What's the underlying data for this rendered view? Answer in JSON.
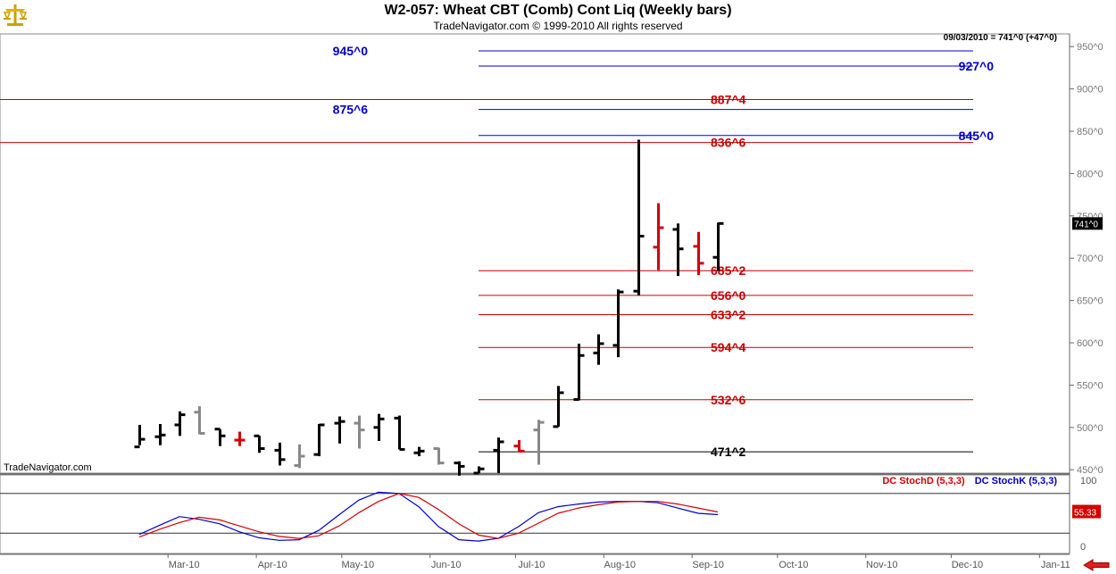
{
  "header": {
    "title": "W2-057:  Wheat CBT (Comb) Cont Liq  (Weekly bars)",
    "subtitle": "TradeNavigator.com © 1999-2010 All rights reserved",
    "stamp": "09/03/2010 = 741^0 (+47^0)",
    "watermark": "TradeNavigator.com"
  },
  "indicator": {
    "stochd_label": "DC StochD (5,3,3)",
    "stochk_label": "DC StochK (5,3,3)",
    "last_value": "55.33",
    "ticks": [
      "100",
      "0"
    ],
    "levels": [
      80,
      20
    ],
    "d_color": "#d40000",
    "k_color": "#0000c8"
  },
  "chart_data": {
    "type": "ohlc",
    "y_ticks": [
      "950^0",
      "900^0",
      "850^0",
      "800^0",
      "750^0",
      "700^0",
      "650^0",
      "600^0",
      "550^0",
      "500^0",
      "450^0"
    ],
    "y_values": [
      950,
      900,
      850,
      800,
      750,
      700,
      650,
      600,
      550,
      500,
      450
    ],
    "ylim": [
      446,
      965
    ],
    "last_price_label": "741^0",
    "x_ticks": [
      "Mar-10",
      "Apr-10",
      "May-10",
      "Jun-10",
      "Jul-10",
      "Aug-10",
      "Sep-10",
      "Oct-10",
      "Nov-10",
      "Dec-10",
      "Jan-11"
    ],
    "bars": [
      {
        "date": "2010-02-19",
        "o": 477,
        "h": 503,
        "l": 479,
        "c": 486,
        "color": "#000000"
      },
      {
        "date": "2010-02-26",
        "o": 489,
        "h": 504,
        "l": 479,
        "c": 491,
        "color": "#000000"
      },
      {
        "date": "2010-03-05",
        "o": 503,
        "h": 519,
        "l": 490,
        "c": 515,
        "color": "#000000"
      },
      {
        "date": "2010-03-12",
        "o": 518,
        "h": 525,
        "l": 492,
        "c": 493,
        "color": "#888888"
      },
      {
        "date": "2010-03-19",
        "o": 498,
        "h": 498,
        "l": 478,
        "c": 490,
        "color": "#000000"
      },
      {
        "date": "2010-03-26",
        "o": 485,
        "h": 495,
        "l": 478,
        "c": 485,
        "color": "#d40000"
      },
      {
        "date": "2010-04-02",
        "o": 490,
        "h": 490,
        "l": 470,
        "c": 475,
        "color": "#000000"
      },
      {
        "date": "2010-04-09",
        "o": 473,
        "h": 482,
        "l": 455,
        "c": 462,
        "color": "#000000"
      },
      {
        "date": "2010-04-16",
        "o": 455,
        "h": 480,
        "l": 452,
        "c": 466,
        "color": "#888888"
      },
      {
        "date": "2010-04-23",
        "o": 468,
        "h": 504,
        "l": 466,
        "c": 503,
        "color": "#000000"
      },
      {
        "date": "2010-04-30",
        "o": 505,
        "h": 513,
        "l": 481,
        "c": 507,
        "color": "#000000"
      },
      {
        "date": "2010-05-07",
        "o": 505,
        "h": 514,
        "l": 475,
        "c": 497,
        "color": "#888888"
      },
      {
        "date": "2010-05-14",
        "o": 500,
        "h": 516,
        "l": 484,
        "c": 510,
        "color": "#000000"
      },
      {
        "date": "2010-05-21",
        "o": 511,
        "h": 514,
        "l": 474,
        "c": 474,
        "color": "#000000"
      },
      {
        "date": "2010-05-28",
        "o": 470,
        "h": 477,
        "l": 466,
        "c": 472,
        "color": "#000000"
      },
      {
        "date": "2010-06-04",
        "o": 475,
        "h": 476,
        "l": 456,
        "c": 458,
        "color": "#888888"
      },
      {
        "date": "2010-06-11",
        "o": 458,
        "h": 460,
        "l": 443,
        "c": 454,
        "color": "#000000"
      },
      {
        "date": "2010-06-18",
        "o": 446,
        "h": 454,
        "l": 446,
        "c": 451,
        "color": "#000000"
      },
      {
        "date": "2010-06-25",
        "o": 473,
        "h": 488,
        "l": 446,
        "c": 483,
        "color": "#000000"
      },
      {
        "date": "2010-07-02",
        "o": 478,
        "h": 485,
        "l": 471,
        "c": 472,
        "color": "#d40000"
      },
      {
        "date": "2010-07-09",
        "o": 497,
        "h": 509,
        "l": 456,
        "c": 506,
        "color": "#888888"
      },
      {
        "date": "2010-07-16",
        "o": 501,
        "h": 549,
        "l": 501,
        "c": 541,
        "color": "#000000"
      },
      {
        "date": "2010-07-23",
        "o": 533,
        "h": 599,
        "l": 532,
        "c": 585,
        "color": "#000000"
      },
      {
        "date": "2010-07-30",
        "o": 588,
        "h": 610,
        "l": 574,
        "c": 599,
        "color": "#000000"
      },
      {
        "date": "2010-08-06",
        "o": 597,
        "h": 663,
        "l": 583,
        "c": 660,
        "color": "#000000"
      },
      {
        "date": "2010-08-13",
        "o": 661,
        "h": 840,
        "l": 656,
        "c": 726,
        "color": "#000000"
      },
      {
        "date": "2010-08-20",
        "o": 713,
        "h": 765,
        "l": 686,
        "c": 736,
        "color": "#d40000"
      },
      {
        "date": "2010-08-27",
        "o": 734,
        "h": 741,
        "l": 679,
        "c": 711,
        "color": "#000000"
      },
      {
        "date": "2010-09-03",
        "o": 714,
        "h": 731,
        "l": 680,
        "c": 694,
        "color": "#d40000"
      },
      {
        "date": "2010-09-10",
        "o": 701,
        "h": 742,
        "l": 685,
        "c": 741,
        "color": "#000000"
      }
    ],
    "levels": [
      {
        "label": "945^0",
        "value": 945,
        "color": "#0000c8",
        "side": "left",
        "start": "2010-06-18"
      },
      {
        "label": "927^0",
        "value": 927,
        "color": "#0000c8",
        "side": "right",
        "start": "2010-06-18"
      },
      {
        "label": "887^4",
        "value": 887.5,
        "color": "#c80000",
        "side": "mid",
        "start": "2010-01-01"
      },
      {
        "label": "875^6",
        "value": 875.75,
        "color": "#0000c8",
        "side": "left",
        "start": "2010-06-18"
      },
      {
        "label": "845^0",
        "value": 845,
        "color": "#0000c8",
        "side": "right",
        "start": "2010-06-18"
      },
      {
        "label": "836^6",
        "value": 836.75,
        "color": "#c80000",
        "side": "mid",
        "start": "2010-01-01"
      },
      {
        "label": "685^2",
        "value": 685.25,
        "color": "#c80000",
        "side": "mid",
        "start": "2010-06-18"
      },
      {
        "label": "656^0",
        "value": 656,
        "color": "#c80000",
        "side": "mid",
        "start": "2010-06-18"
      },
      {
        "label": "633^2",
        "value": 633.25,
        "color": "#c80000",
        "side": "mid",
        "start": "2010-06-18"
      },
      {
        "label": "594^4",
        "value": 594.5,
        "color": "#c80000",
        "side": "mid",
        "start": "2010-06-18"
      },
      {
        "label": "532^6",
        "value": 532.75,
        "color": "#c80000",
        "side": "mid",
        "start": "2010-06-18"
      },
      {
        "label": "471^2",
        "value": 471.25,
        "color": "#000000",
        "side": "mid",
        "start": "2010-06-18"
      }
    ],
    "stoch_k": [
      18,
      32,
      45,
      41,
      34,
      22,
      13,
      9,
      10,
      24,
      48,
      70,
      82,
      80,
      60,
      30,
      10,
      8,
      12,
      30,
      51,
      60,
      64,
      67,
      68,
      68,
      66,
      58,
      50,
      48
    ],
    "stoch_d": [
      14,
      26,
      36,
      44,
      40,
      31,
      22,
      15,
      12,
      16,
      31,
      51,
      68,
      80,
      74,
      56,
      34,
      17,
      12,
      20,
      35,
      50,
      58,
      63,
      67,
      68,
      68,
      64,
      58,
      52
    ]
  }
}
